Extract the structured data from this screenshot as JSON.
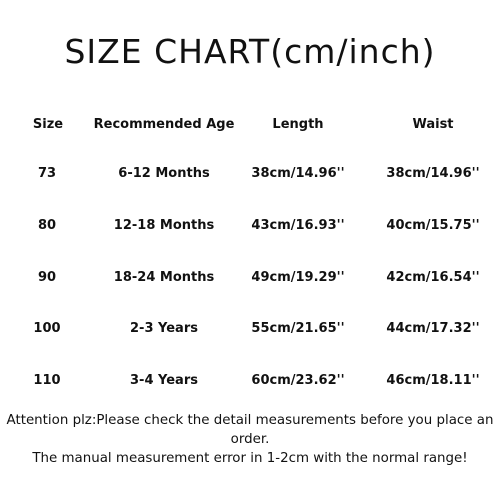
{
  "title": "SIZE CHART(cm/inch)",
  "table": {
    "headers": [
      "Size",
      "Recommended Age",
      "Length",
      "Waist"
    ],
    "rows": [
      [
        "73",
        "6-12 Months",
        "38cm/14.96''",
        "38cm/14.96''"
      ],
      [
        "80",
        "12-18 Months",
        "43cm/16.93''",
        "40cm/15.75''"
      ],
      [
        "90",
        "18-24 Months",
        "49cm/19.29''",
        "42cm/16.54''"
      ],
      [
        "100",
        "2-3 Years",
        "55cm/21.65''",
        "44cm/17.32''"
      ],
      [
        "110",
        "3-4 Years",
        "60cm/23.62''",
        "46cm/18.11''"
      ]
    ]
  },
  "notes": {
    "line1": "Attention plz:Please check the detail measurements before you place an",
    "line2": "order.",
    "line3": "The manual measurement error in 1-2cm with the normal range!"
  }
}
